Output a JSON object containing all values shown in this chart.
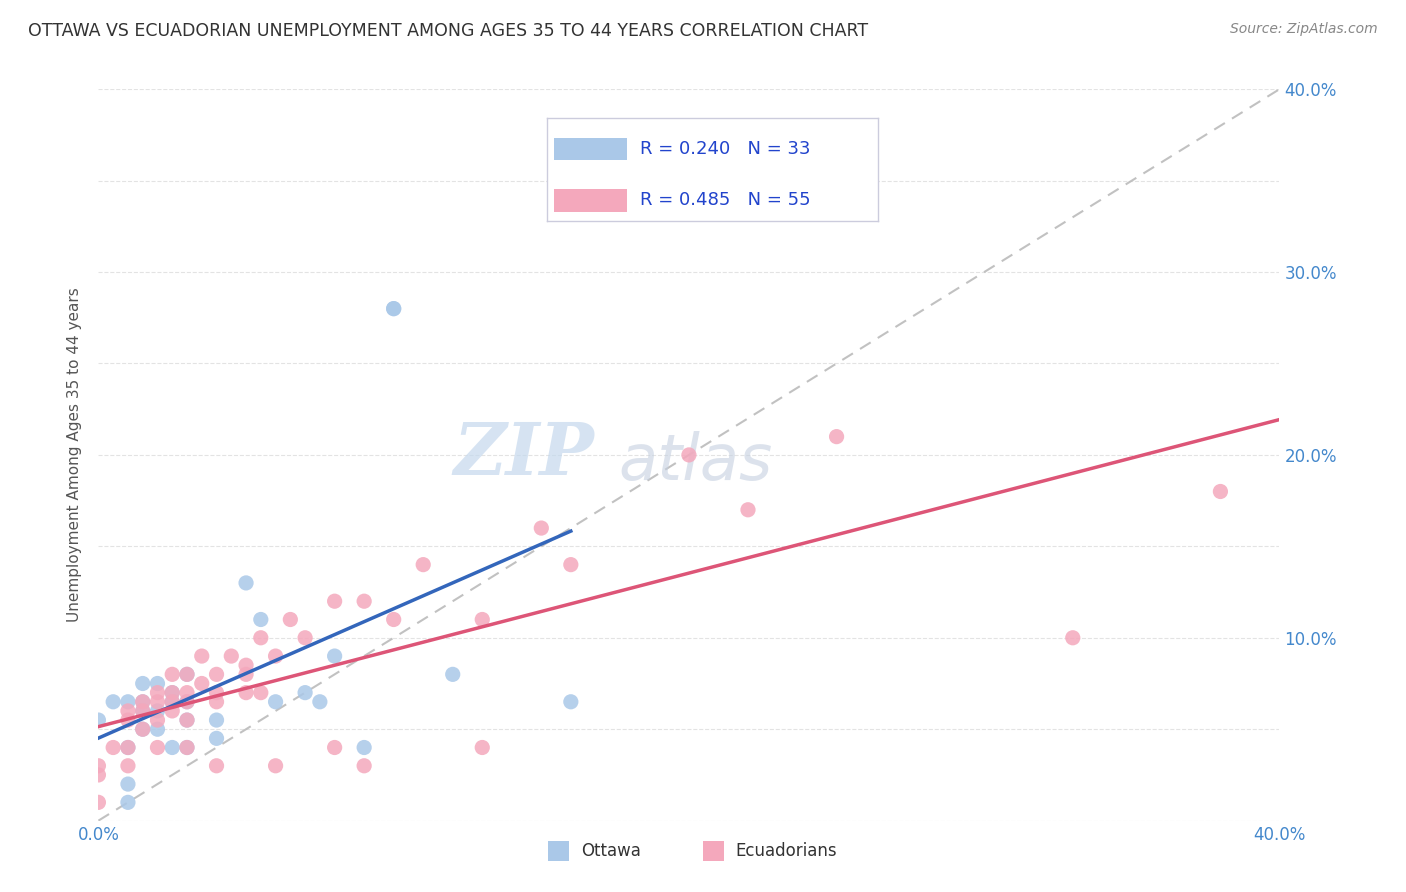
{
  "title": "OTTAWA VS ECUADORIAN UNEMPLOYMENT AMONG AGES 35 TO 44 YEARS CORRELATION CHART",
  "source": "Source: ZipAtlas.com",
  "ylabel": "Unemployment Among Ages 35 to 44 years",
  "xlim": [
    0.0,
    0.4
  ],
  "ylim": [
    0.0,
    0.4
  ],
  "xticks": [
    0.0,
    0.05,
    0.1,
    0.15,
    0.2,
    0.25,
    0.3,
    0.35,
    0.4
  ],
  "yticks": [
    0.0,
    0.05,
    0.1,
    0.15,
    0.2,
    0.25,
    0.3,
    0.35,
    0.4
  ],
  "ottawa_color": "#aac8e8",
  "ecuadorian_color": "#f4a8bc",
  "ottawa_line_color": "#3366bb",
  "ecuadorian_line_color": "#dd5577",
  "trend_dashed_color": "#bbbbbb",
  "ottawa_R": 0.24,
  "ottawa_N": 33,
  "ecuadorian_R": 0.485,
  "ecuadorian_N": 55,
  "watermark_zip": "ZIP",
  "watermark_atlas": "atlas",
  "watermark_color_zip": "#c5d8ed",
  "watermark_color_atlas": "#c5d0e0",
  "ottawa_scatter_x": [
    0.0,
    0.005,
    0.01,
    0.01,
    0.01,
    0.01,
    0.015,
    0.015,
    0.015,
    0.015,
    0.02,
    0.02,
    0.02,
    0.025,
    0.025,
    0.025,
    0.03,
    0.03,
    0.03,
    0.03,
    0.04,
    0.04,
    0.05,
    0.055,
    0.06,
    0.07,
    0.075,
    0.08,
    0.09,
    0.1,
    0.1,
    0.12,
    0.16
  ],
  "ottawa_scatter_y": [
    0.055,
    0.065,
    0.065,
    0.04,
    0.02,
    0.01,
    0.075,
    0.065,
    0.06,
    0.05,
    0.075,
    0.06,
    0.05,
    0.07,
    0.065,
    0.04,
    0.08,
    0.065,
    0.055,
    0.04,
    0.055,
    0.045,
    0.13,
    0.11,
    0.065,
    0.07,
    0.065,
    0.09,
    0.04,
    0.28,
    0.28,
    0.08,
    0.065
  ],
  "ecuadorian_scatter_x": [
    0.0,
    0.0,
    0.0,
    0.005,
    0.01,
    0.01,
    0.01,
    0.01,
    0.015,
    0.015,
    0.015,
    0.02,
    0.02,
    0.02,
    0.02,
    0.025,
    0.025,
    0.025,
    0.025,
    0.03,
    0.03,
    0.03,
    0.03,
    0.03,
    0.035,
    0.035,
    0.04,
    0.04,
    0.04,
    0.04,
    0.045,
    0.05,
    0.05,
    0.05,
    0.055,
    0.055,
    0.06,
    0.06,
    0.065,
    0.07,
    0.08,
    0.08,
    0.09,
    0.09,
    0.1,
    0.11,
    0.13,
    0.13,
    0.15,
    0.16,
    0.2,
    0.22,
    0.25,
    0.33,
    0.38
  ],
  "ecuadorian_scatter_y": [
    0.03,
    0.025,
    0.01,
    0.04,
    0.06,
    0.055,
    0.04,
    0.03,
    0.065,
    0.06,
    0.05,
    0.07,
    0.065,
    0.055,
    0.04,
    0.08,
    0.07,
    0.065,
    0.06,
    0.08,
    0.07,
    0.065,
    0.055,
    0.04,
    0.09,
    0.075,
    0.08,
    0.07,
    0.065,
    0.03,
    0.09,
    0.085,
    0.08,
    0.07,
    0.1,
    0.07,
    0.09,
    0.03,
    0.11,
    0.1,
    0.12,
    0.04,
    0.12,
    0.03,
    0.11,
    0.14,
    0.11,
    0.04,
    0.16,
    0.14,
    0.2,
    0.17,
    0.21,
    0.1,
    0.18
  ],
  "background_color": "#ffffff",
  "grid_color": "#dddddd",
  "tick_color": "#4488cc",
  "title_color": "#333333",
  "source_color": "#888888",
  "legend_text_color": "#2244cc",
  "n_color": "#22aa22"
}
